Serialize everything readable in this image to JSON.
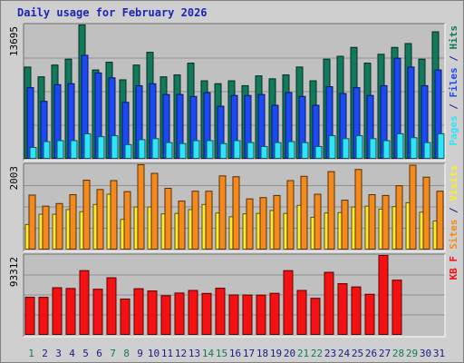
{
  "title": "Daily usage for February 2026",
  "colors": {
    "hits": "#127a5c",
    "files": "#1a49f5",
    "pages": "#2de4f8",
    "visits": "#ffeb2e",
    "sites": "#f48a1c",
    "kbytes": "#f51111",
    "weekend_label": "#127a5c",
    "weekday_label": "#1a1a8a"
  },
  "chart_data": {
    "type": "bar",
    "days": [
      "1",
      "2",
      "3",
      "4",
      "5",
      "6",
      "7",
      "8",
      "9",
      "10",
      "11",
      "12",
      "13",
      "14",
      "15",
      "16",
      "17",
      "18",
      "19",
      "20",
      "21",
      "22",
      "23",
      "24",
      "25",
      "26",
      "27",
      "28",
      "29",
      "30",
      "31"
    ],
    "weekend_days": [
      1,
      7,
      8,
      14,
      15,
      21,
      22,
      28,
      29
    ],
    "panels": [
      {
        "ylabel_parts": [
          {
            "text": "Pages",
            "color": "#2de4f8"
          },
          {
            "text": " / ",
            "color": "#1a1a8a"
          },
          {
            "text": "Files",
            "color": "#1a49f5"
          },
          {
            "text": " / ",
            "color": "#1a1a8a"
          },
          {
            "text": "Hits",
            "color": "#127a5c"
          }
        ],
        "ymax_label": "13695",
        "ymax": 13695,
        "series": [
          {
            "name": "Hits",
            "color": "#127a5c",
            "values": [
              9400,
              8400,
              9600,
              10200,
              13695,
              9100,
              9900,
              8100,
              9600,
              10900,
              8400,
              8600,
              9800,
              8000,
              7700,
              8000,
              7500,
              8500,
              8200,
              8600,
              9400,
              8000,
              10200,
              10500,
              11400,
              9800,
              10700,
              11400,
              11800,
              10200,
              13000
            ]
          },
          {
            "name": "Files",
            "color": "#1a49f5",
            "values": [
              7300,
              5900,
              7600,
              7700,
              10600,
              8800,
              8300,
              5800,
              7500,
              7700,
              6600,
              6600,
              6400,
              6800,
              5400,
              6500,
              6500,
              6600,
              5500,
              6800,
              6400,
              5500,
              7400,
              6700,
              7300,
              6500,
              7500,
              10300,
              9400,
              7500,
              9100
            ]
          },
          {
            "name": "Pages",
            "color": "#2de4f8",
            "values": [
              1200,
              1800,
              1900,
              1900,
              2600,
              2300,
              2400,
              1500,
              2000,
              2100,
              1700,
              1600,
              1900,
              1900,
              1600,
              1900,
              1700,
              1300,
              1700,
              1800,
              1700,
              1300,
              2400,
              2100,
              2400,
              2100,
              1900,
              2600,
              2200,
              1700,
              2600
            ]
          }
        ]
      },
      {
        "ylabel_parts": [
          {
            "text": "Sites",
            "color": "#f48a1c"
          },
          {
            "text": " / ",
            "color": "#1a1a8a"
          },
          {
            "text": "Visits",
            "color": "#ffeb2e"
          }
        ],
        "ymax_label": "2003",
        "ymax": 2003,
        "series": [
          {
            "name": "Visits",
            "color": "#ffeb2e",
            "values": [
              600,
              840,
              840,
              950,
              900,
              1070,
              1310,
              720,
              1010,
              1010,
              850,
              860,
              950,
              1070,
              870,
              780,
              850,
              860,
              930,
              860,
              1050,
              770,
              870,
              880,
              1010,
              1030,
              960,
              1020,
              1110,
              890,
              680
            ]
          },
          {
            "name": "Sites",
            "color": "#f48a1c",
            "values": [
              1290,
              1030,
              1090,
              1300,
              1640,
              1420,
              1630,
              1370,
              2003,
              1800,
              1450,
              1150,
              1380,
              1380,
              1740,
              1720,
              1200,
              1230,
              1280,
              1630,
              1730,
              1310,
              1840,
              1170,
              1890,
              1300,
              1280,
              1510,
              1990,
              1710,
              1380
            ]
          }
        ]
      },
      {
        "ylabel_parts": [
          {
            "text": "KB F",
            "color": "#f51111"
          }
        ],
        "ymax_label": "93312",
        "ymax": 93312,
        "series": [
          {
            "name": "KB F",
            "color": "#f51111",
            "values": [
              44400,
              44400,
              55600,
              54700,
              75500,
              53800,
              67200,
              42400,
              54400,
              51800,
              46300,
              49400,
              52400,
              48900,
              55000,
              47200,
              47100,
              47000,
              49000,
              75500,
              52400,
              43200,
              73600,
              60300,
              56500,
              47900,
              93312,
              64400,
              0,
              0,
              0
            ]
          }
        ]
      }
    ]
  }
}
